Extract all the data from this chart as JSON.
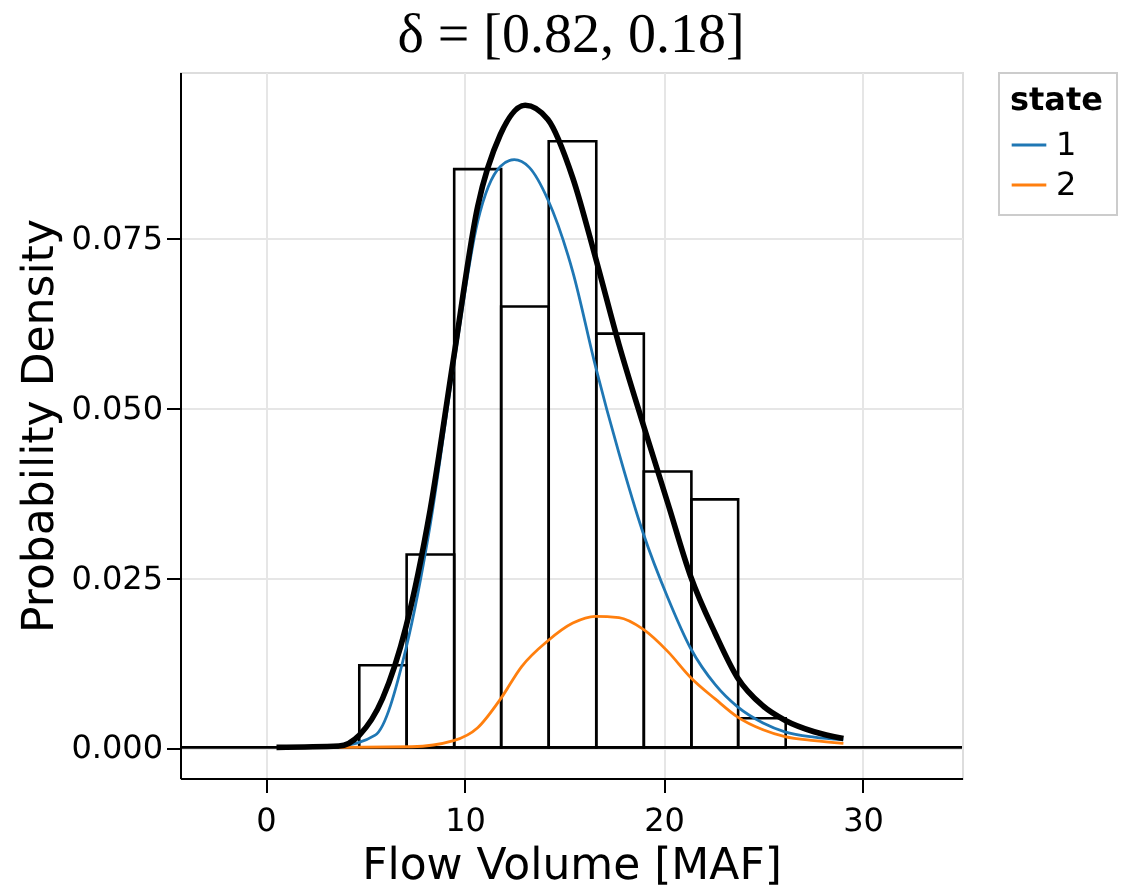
{
  "chart_data": {
    "type": "histogram",
    "title": "δ = [0.82, 0.18]",
    "xlabel": "Flow Volume [MAF]",
    "ylabel": "Probability Density",
    "legend_title": "state",
    "bins": [
      4.71,
      7.09,
      9.48,
      11.84,
      14.23,
      16.62,
      19.01,
      21.4,
      23.75,
      26.14
    ],
    "values": [
      0.0121,
      0.0284,
      0.0851,
      0.0649,
      0.0892,
      0.0609,
      0.0406,
      0.0365,
      0.0043
    ],
    "color": "#000000",
    "series": [
      {
        "name": "1",
        "type": "line",
        "color": "#1f77b4",
        "x": [
          3.68,
          5.51,
          7.06,
          8.27,
          9.45,
          10.66,
          11.8,
          12.5,
          13.24,
          14.19,
          15.44,
          16.58,
          17.76,
          18.97,
          20.22,
          21.36,
          22.61,
          23.71,
          25.0,
          26.1,
          27.57,
          29.04
        ],
        "values": [
          0.0001,
          0.0018,
          0.0146,
          0.0327,
          0.0561,
          0.0774,
          0.0855,
          0.0865,
          0.0854,
          0.0806,
          0.07,
          0.0561,
          0.0433,
          0.0316,
          0.022,
          0.0146,
          0.0092,
          0.006,
          0.0036,
          0.0023,
          0.0015,
          0.0011
        ]
      },
      {
        "name": "2",
        "type": "line",
        "color": "#ff7f0e",
        "x": [
          3.68,
          7.35,
          9.45,
          10.66,
          11.8,
          12.87,
          14.19,
          15.44,
          16.58,
          17.76,
          18.97,
          20.22,
          21.36,
          22.61,
          23.71,
          25.0,
          26.1,
          27.57,
          29.04
        ],
        "values": [
          0.0,
          0.0001,
          0.001,
          0.0029,
          0.0071,
          0.0119,
          0.0157,
          0.0183,
          0.0193,
          0.0191,
          0.0174,
          0.0141,
          0.0103,
          0.0071,
          0.0045,
          0.0026,
          0.0016,
          0.001,
          0.0006
        ]
      },
      {
        "type": "line",
        "color": "#000000",
        "x": [
          0.55,
          3.68,
          4.71,
          5.88,
          7.06,
          8.27,
          9.45,
          10.66,
          11.8,
          13.05,
          14.19,
          15.44,
          16.58,
          17.76,
          18.97,
          20.22,
          21.36,
          22.61,
          23.71,
          25.0,
          26.1,
          27.57,
          29.04
        ],
        "values": [
          0.0,
          0.0002,
          0.0018,
          0.0072,
          0.0178,
          0.0349,
          0.0573,
          0.0796,
          0.0902,
          0.0945,
          0.0924,
          0.0838,
          0.0721,
          0.0593,
          0.0476,
          0.0359,
          0.0252,
          0.0167,
          0.0103,
          0.0061,
          0.004,
          0.0023,
          0.0013
        ]
      }
    ],
    "ref_lines": [
      {
        "axis": "y",
        "value": 0,
        "color": "#000000"
      }
    ],
    "xlim": [
      -4.3,
      35
    ],
    "ylim": [
      -0.0045,
      0.0994
    ],
    "xticks": [
      0,
      10,
      20,
      30
    ],
    "yticks": [
      {
        "value": 0,
        "label": "0.000"
      },
      0.025,
      {
        "value": 0.05,
        "label": "0.050"
      },
      0.075
    ],
    "grid": true,
    "legend": "right"
  }
}
